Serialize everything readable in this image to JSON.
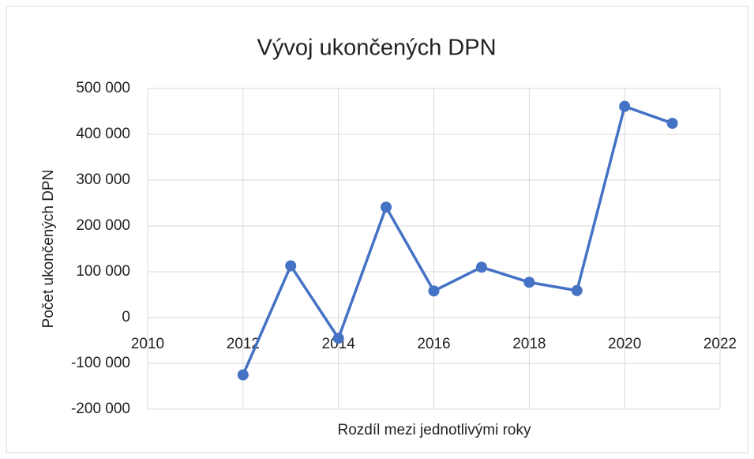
{
  "chart_data": {
    "type": "line",
    "title": "Vývoj ukončených DPN",
    "x_label": "Rozdíl mezi jednotlivými roky",
    "y_label": "Počet ukončených DPN",
    "x": [
      2012,
      2013,
      2014,
      2015,
      2016,
      2017,
      2018,
      2019,
      2020,
      2021
    ],
    "values": [
      -125000,
      113000,
      -45000,
      241000,
      58000,
      110000,
      77000,
      59000,
      461000,
      424000
    ],
    "color": "#4472c4",
    "xlim": [
      2010,
      2022
    ],
    "xticks": [
      2010,
      2012,
      2014,
      2016,
      2018,
      2020,
      2022
    ],
    "ylim": [
      -200000,
      500000
    ],
    "yticks": [
      {
        "value": -200000,
        "label": "-200 000"
      },
      {
        "value": -100000,
        "label": "-100 000"
      },
      0,
      {
        "value": 100000,
        "label": "100 000"
      },
      {
        "value": 200000,
        "label": "200 000"
      },
      {
        "value": 300000,
        "label": "300 000"
      },
      {
        "value": 400000,
        "label": "400 000"
      },
      {
        "value": 500000,
        "label": "500 000"
      }
    ],
    "grid": true
  }
}
